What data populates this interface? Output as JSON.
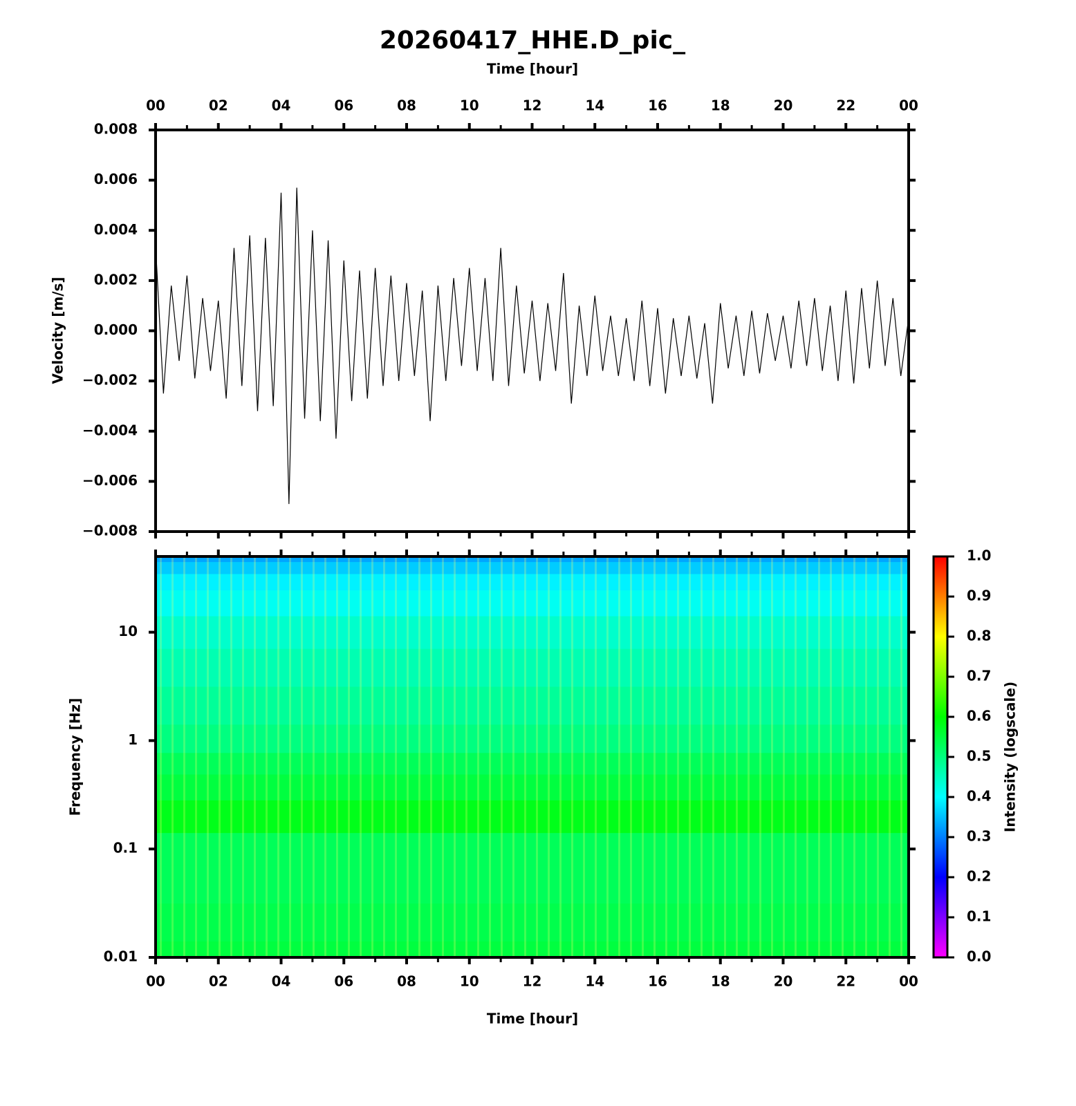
{
  "chart_data": [
    {
      "type": "line",
      "title": "20260417_HHE.D_pic_",
      "xlabel": "Time [hour]",
      "ylabel": "Velocity [m/s]",
      "color": "#000000",
      "x": [
        0,
        0.25,
        0.5,
        0.75,
        1,
        1.25,
        1.5,
        1.75,
        2,
        2.25,
        2.5,
        2.75,
        3,
        3.25,
        3.5,
        3.75,
        4,
        4.25,
        4.5,
        4.75,
        5,
        5.25,
        5.5,
        5.75,
        6,
        6.25,
        6.5,
        6.75,
        7,
        7.25,
        7.5,
        7.75,
        8,
        8.25,
        8.5,
        8.75,
        9,
        9.25,
        9.5,
        9.75,
        10,
        10.25,
        10.5,
        10.75,
        11,
        11.25,
        11.5,
        11.75,
        12,
        12.25,
        12.5,
        12.75,
        13,
        13.25,
        13.5,
        13.75,
        14,
        14.25,
        14.5,
        14.75,
        15,
        15.25,
        15.5,
        15.75,
        16,
        16.25,
        16.5,
        16.75,
        17,
        17.25,
        17.5,
        17.75,
        18,
        18.25,
        18.5,
        18.75,
        19,
        19.25,
        19.5,
        19.75,
        20,
        20.25,
        20.5,
        20.75,
        21,
        21.25,
        21.5,
        21.75,
        22,
        22.25,
        22.5,
        22.75,
        23,
        23.25,
        23.5,
        23.75,
        24
      ],
      "values": [
        0.0034,
        -0.0025,
        0.0018,
        -0.0012,
        0.0022,
        -0.0019,
        0.0013,
        -0.0016,
        0.0012,
        -0.0027,
        0.0033,
        -0.0022,
        0.0038,
        -0.0032,
        0.0037,
        -0.003,
        0.0055,
        -0.0069,
        0.0057,
        -0.0035,
        0.004,
        -0.0036,
        0.0036,
        -0.0043,
        0.0028,
        -0.0028,
        0.0024,
        -0.0027,
        0.0025,
        -0.0022,
        0.0022,
        -0.002,
        0.0019,
        -0.0018,
        0.0016,
        -0.0036,
        0.0018,
        -0.002,
        0.0021,
        -0.0014,
        0.0025,
        -0.0016,
        0.0021,
        -0.002,
        0.0033,
        -0.0022,
        0.0018,
        -0.0017,
        0.0012,
        -0.002,
        0.0011,
        -0.0016,
        0.0023,
        -0.0029,
        0.001,
        -0.0018,
        0.0014,
        -0.0016,
        0.0006,
        -0.0018,
        0.0005,
        -0.002,
        0.0012,
        -0.0022,
        0.0009,
        -0.0025,
        0.0005,
        -0.0018,
        0.0006,
        -0.0019,
        0.0003,
        -0.0029,
        0.0011,
        -0.0015,
        0.0006,
        -0.0018,
        0.0008,
        -0.0017,
        0.0007,
        -0.0012,
        0.0006,
        -0.0015,
        0.0012,
        -0.0014,
        0.0013,
        -0.0016,
        0.001,
        -0.002,
        0.0016,
        -0.0021,
        0.0017,
        -0.0015,
        0.002,
        -0.0014,
        0.0013,
        -0.0018,
        0.0005
      ],
      "xlim": [
        0,
        24
      ],
      "xticks": [
        {
          "value": 0,
          "label": "00"
        },
        {
          "value": 2,
          "label": "02"
        },
        {
          "value": 4,
          "label": "04"
        },
        {
          "value": 6,
          "label": "06"
        },
        {
          "value": 8,
          "label": "08"
        },
        10,
        12,
        14,
        16,
        18,
        20,
        22,
        {
          "value": 24,
          "label": "00"
        }
      ],
      "ylim": [
        -0.008,
        0.008
      ],
      "yticks": [
        {
          "value": -0.008,
          "label": "−0.008"
        },
        {
          "value": -0.006,
          "label": "−0.006"
        },
        {
          "value": -0.004,
          "label": "−0.004"
        },
        {
          "value": -0.002,
          "label": "−0.002"
        },
        {
          "value": 0,
          "label": "0.000"
        },
        0.002,
        0.004,
        0.006,
        0.008
      ]
    },
    {
      "type": "spectrogram",
      "xlabel": "Time [hour]",
      "ylabel": "Frequency [Hz]",
      "colorbar_label": "Intensity (logscale)",
      "log_y": true,
      "frequencies": [
        0.01,
        0.02,
        0.05,
        0.1,
        0.2,
        0.4,
        0.6,
        1,
        2,
        5,
        10,
        20,
        30,
        40,
        50
      ],
      "intensity": [
        0.55,
        0.54,
        0.53,
        0.53,
        0.58,
        0.55,
        0.53,
        0.5,
        0.48,
        0.46,
        0.44,
        0.41,
        0.39,
        0.36,
        0.33
      ],
      "colorscale": [
        "#ff00ff",
        "#0000ff",
        "#00ffff",
        "#00ff00",
        "#ffff00",
        "#ff0000"
      ],
      "xlim": [
        0,
        24
      ],
      "xticks": [
        {
          "value": 0,
          "label": "00"
        },
        {
          "value": 2,
          "label": "02"
        },
        {
          "value": 4,
          "label": "04"
        },
        {
          "value": 6,
          "label": "06"
        },
        {
          "value": 8,
          "label": "08"
        },
        10,
        12,
        14,
        16,
        18,
        20,
        22,
        {
          "value": 24,
          "label": "00"
        }
      ],
      "ylim": [
        0.01,
        50
      ],
      "yticks": [
        0.01,
        0.1,
        1,
        10
      ],
      "zlim": [
        0,
        1
      ],
      "zticks": [
        {
          "value": 0,
          "label": "0.0"
        },
        0.1,
        0.2,
        0.3,
        0.4,
        0.5,
        0.6,
        0.7,
        0.8,
        0.9,
        {
          "value": 1,
          "label": "1.0"
        }
      ]
    }
  ]
}
